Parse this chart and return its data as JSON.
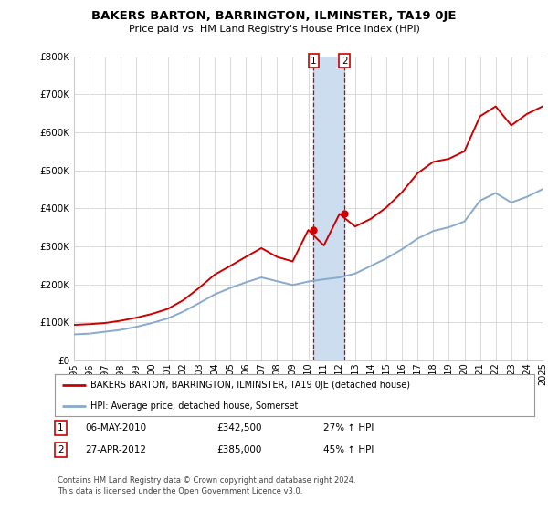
{
  "title": "BAKERS BARTON, BARRINGTON, ILMINSTER, TA19 0JE",
  "subtitle": "Price paid vs. HM Land Registry's House Price Index (HPI)",
  "years": [
    1995,
    1996,
    1997,
    1998,
    1999,
    2000,
    2001,
    2002,
    2003,
    2004,
    2005,
    2006,
    2007,
    2008,
    2009,
    2010,
    2011,
    2012,
    2013,
    2014,
    2015,
    2016,
    2017,
    2018,
    2019,
    2020,
    2021,
    2022,
    2023,
    2024,
    2025
  ],
  "hpi_values": [
    68000,
    70000,
    75000,
    80000,
    88000,
    98000,
    110000,
    128000,
    150000,
    173000,
    190000,
    205000,
    218000,
    208000,
    198000,
    207000,
    213000,
    218000,
    228000,
    248000,
    268000,
    292000,
    320000,
    340000,
    350000,
    365000,
    420000,
    440000,
    415000,
    430000,
    450000
  ],
  "price_paid_values": [
    93000,
    95000,
    98000,
    104000,
    112000,
    122000,
    135000,
    158000,
    190000,
    225000,
    248000,
    272000,
    295000,
    272000,
    260000,
    342500,
    302000,
    385000,
    352000,
    372000,
    402000,
    442000,
    492000,
    522000,
    530000,
    550000,
    642000,
    668000,
    618000,
    648000,
    668000
  ],
  "transaction1_x": 2010.35,
  "transaction1_y": 342500,
  "transaction2_x": 2012.32,
  "transaction2_y": 385000,
  "transaction1_date": "06-MAY-2010",
  "transaction1_price": "£342,500",
  "transaction1_hpi": "27% ↑ HPI",
  "transaction2_date": "27-APR-2012",
  "transaction2_price": "£385,000",
  "transaction2_hpi": "45% ↑ HPI",
  "shade_x1": 2010.35,
  "shade_x2": 2012.32,
  "y_ticks": [
    0,
    100000,
    200000,
    300000,
    400000,
    500000,
    600000,
    700000,
    800000
  ],
  "y_tick_labels": [
    "£0",
    "£100K",
    "£200K",
    "£300K",
    "£400K",
    "£500K",
    "£600K",
    "£700K",
    "£800K"
  ],
  "x_tick_years": [
    1995,
    1996,
    1997,
    1998,
    1999,
    2000,
    2001,
    2002,
    2003,
    2004,
    2005,
    2006,
    2007,
    2008,
    2009,
    2010,
    2011,
    2012,
    2013,
    2014,
    2015,
    2016,
    2017,
    2018,
    2019,
    2020,
    2021,
    2022,
    2023,
    2024,
    2025
  ],
  "red_color": "#cc0000",
  "blue_color": "#88aacc",
  "shade_color": "#ccddf0",
  "grid_color": "#cccccc",
  "bg_color": "#ffffff",
  "legend_red_label": "BAKERS BARTON, BARRINGTON, ILMINSTER, TA19 0JE (detached house)",
  "legend_blue_label": "HPI: Average price, detached house, Somerset",
  "footer_text": "Contains HM Land Registry data © Crown copyright and database right 2024.\nThis data is licensed under the Open Government Licence v3.0."
}
